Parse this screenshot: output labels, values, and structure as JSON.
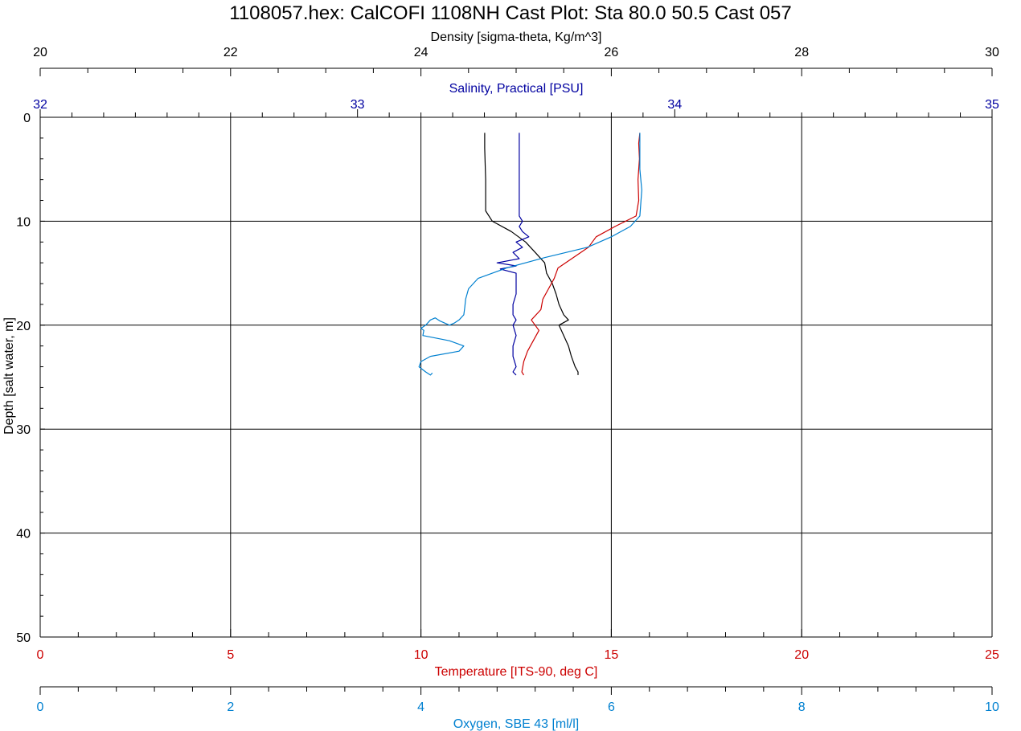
{
  "chart_data": {
    "type": "line",
    "title": "1108057.hex: CalCOFI 1108NH Cast Plot: Sta 80.0 50.5 Cast 057",
    "grid": true,
    "colors": {
      "density": "#000000",
      "salinity": "#0000a0",
      "temperature": "#cc0000",
      "oxygen": "#0080d0",
      "grid": "#000000"
    },
    "depth_axis": {
      "label": "Depth [salt water, m]",
      "range": [
        0,
        50
      ],
      "ticks": [
        "0",
        "10",
        "20",
        "30",
        "40",
        "50"
      ],
      "inverted": true
    },
    "x_axes": [
      {
        "key": "density",
        "label": "Density [sigma-theta, Kg/m^3]",
        "range": [
          20,
          30
        ],
        "ticks": [
          "20",
          "22",
          "24",
          "26",
          "28",
          "30"
        ],
        "position": "top"
      },
      {
        "key": "salinity",
        "label": "Salinity, Practical [PSU]",
        "range": [
          32,
          35
        ],
        "ticks": [
          "32",
          "33",
          "34",
          "35"
        ],
        "position": "top"
      },
      {
        "key": "temperature",
        "label": "Temperature [ITS-90, deg C]",
        "range": [
          0,
          25
        ],
        "ticks": [
          "0",
          "5",
          "10",
          "15",
          "20",
          "25"
        ],
        "position": "bottom"
      },
      {
        "key": "oxygen",
        "label": "Oxygen, SBE 43 [ml/l]",
        "range": [
          0,
          10
        ],
        "ticks": [
          "0",
          "2",
          "4",
          "6",
          "8",
          "10"
        ],
        "position": "bottom"
      }
    ],
    "series": [
      {
        "key": "density",
        "depth": [
          1.5,
          3,
          6,
          9,
          10,
          11,
          12,
          13,
          14,
          15,
          16,
          17,
          18,
          19,
          19.5,
          20,
          21,
          22,
          23,
          24,
          24.5,
          24.8
        ],
        "values": [
          24.67,
          24.67,
          24.68,
          24.68,
          24.75,
          24.95,
          25.1,
          25.2,
          25.3,
          25.32,
          25.38,
          25.42,
          25.45,
          25.5,
          25.55,
          25.45,
          25.5,
          25.55,
          25.58,
          25.62,
          25.65,
          25.65
        ]
      },
      {
        "key": "salinity",
        "depth": [
          1.5,
          4,
          6,
          8,
          9.5,
          10,
          10.5,
          11,
          11.5,
          12,
          12.5,
          13,
          13.6,
          14,
          14.3,
          14.6,
          15,
          16,
          17,
          18,
          19,
          19.5,
          20,
          21,
          22,
          23,
          24,
          24.5,
          24.8
        ],
        "values": [
          33.51,
          33.51,
          33.51,
          33.51,
          33.51,
          33.52,
          33.51,
          33.52,
          33.54,
          33.5,
          33.52,
          33.49,
          33.51,
          33.44,
          33.5,
          33.45,
          33.5,
          33.5,
          33.5,
          33.49,
          33.49,
          33.5,
          33.49,
          33.5,
          33.49,
          33.49,
          33.5,
          33.49,
          33.5
        ]
      },
      {
        "key": "temperature",
        "depth": [
          1.5,
          2.5,
          4,
          6,
          8,
          9.5,
          10.5,
          11.5,
          12.5,
          13.5,
          14.5,
          15.5,
          16.5,
          17.5,
          18.5,
          19.5,
          20.5,
          21.5,
          22.5,
          23.5,
          24.5,
          24.8
        ],
        "values": [
          15.75,
          15.72,
          15.74,
          15.7,
          15.72,
          15.65,
          15.1,
          14.6,
          14.4,
          14.0,
          13.6,
          13.5,
          13.35,
          13.2,
          13.15,
          12.9,
          13.1,
          12.95,
          12.8,
          12.7,
          12.65,
          12.7
        ]
      },
      {
        "key": "oxygen",
        "depth": [
          1.5,
          3,
          5,
          7,
          9.5,
          10.5,
          11.5,
          12.5,
          13.5,
          14.5,
          15.5,
          16.5,
          17.5,
          18.3,
          19,
          19.5,
          19.8,
          20,
          19.6,
          19.3,
          19.5,
          20,
          20.3,
          20.5,
          21,
          21.5,
          22,
          22.5,
          23,
          23.5,
          24,
          24.5,
          24.8,
          24.6
        ],
        "values": [
          6.3,
          6.3,
          6.3,
          6.32,
          6.3,
          6.2,
          6.0,
          5.75,
          5.3,
          4.9,
          4.6,
          4.5,
          4.47,
          4.46,
          4.45,
          4.4,
          4.35,
          4.3,
          4.2,
          4.15,
          4.1,
          4.05,
          4.0,
          4.03,
          4.02,
          4.3,
          4.45,
          4.4,
          4.1,
          4.0,
          3.98,
          4.05,
          4.1,
          4.12
        ]
      }
    ]
  }
}
